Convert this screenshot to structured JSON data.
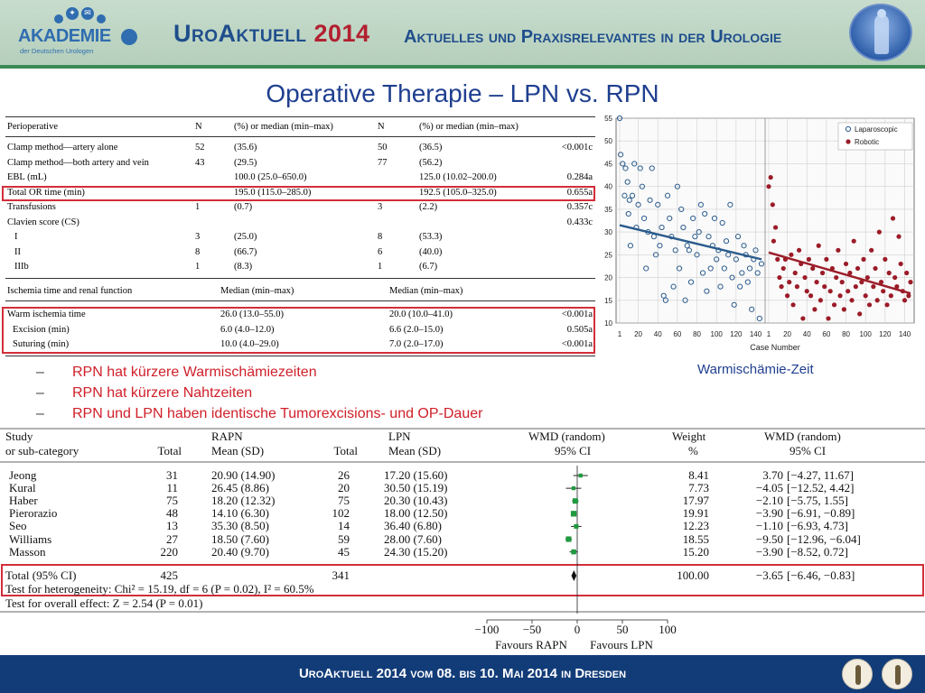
{
  "header": {
    "logo_name": "AKADEMIE",
    "logo_sub": "der Deutschen Urologen",
    "title_main": "UroAktuell",
    "title_year": "2014",
    "subtitle": "Aktuelles und Praxisrelevantes in der Urologie"
  },
  "slide_title": "Operative Therapie – LPN vs. RPN",
  "table1": {
    "headers": [
      "Perioperative",
      "N",
      "(%) or median (min–max)",
      "N",
      "(%) or median (min–max)"
    ],
    "rows": [
      [
        "Clamp method—artery alone",
        "52",
        "(35.6)",
        "50",
        "(36.5)",
        "<0.001c"
      ],
      [
        "Clamp method—both artery and vein",
        "43",
        "(29.5)",
        "77",
        "(56.2)",
        ""
      ],
      [
        "EBL (mL)",
        "",
        "100.0 (25.0–650.0)",
        "",
        "125.0 (10.02–200.0)",
        "0.284a"
      ],
      [
        "Total OR time (min)",
        "",
        "195.0 (115.0–285.0)",
        "",
        "192.5 (105.0–325.0)",
        "0.655a"
      ],
      [
        "Transfusions",
        "1",
        "(0.7)",
        "3",
        "(2.2)",
        "0.357c"
      ],
      [
        "Clavien score (CS)",
        "",
        "",
        "",
        "",
        "0.433c"
      ],
      [
        "I",
        "3",
        "(25.0)",
        "8",
        "(53.3)",
        ""
      ],
      [
        "II",
        "8",
        "(66.7)",
        "6",
        "(40.0)",
        ""
      ],
      [
        "IIIb",
        "1",
        "(8.3)",
        "1",
        "(6.7)",
        ""
      ]
    ],
    "section2_headers": [
      "Ischemia time and renal function",
      "Median (min–max)",
      "Median (min–max)"
    ],
    "rows2": [
      [
        "Warm ischemia time",
        "26.0 (13.0–55.0)",
        "20.0 (10.0–41.0)",
        "<0.001a"
      ],
      [
        "Excision (min)",
        "6.0 (4.0–12.0)",
        "6.6 (2.0–15.0)",
        "0.505a"
      ],
      [
        "Suturing (min)",
        "10.0 (4.0–29.0)",
        "7.0 (2.0–17.0)",
        "<0.001a"
      ]
    ]
  },
  "chart_data": [
    {
      "type": "scatter",
      "xlabel": "Case Number",
      "ylabel": "",
      "ylim": [
        10,
        55
      ],
      "yticks": [
        10,
        15,
        20,
        25,
        30,
        35,
        40,
        45,
        50,
        55
      ],
      "xtick_labels": [
        "1",
        "20",
        "40",
        "60",
        "80",
        "100",
        "120",
        "140",
        "1",
        "20",
        "40",
        "60",
        "80",
        "100",
        "120",
        "140"
      ],
      "grid": true,
      "legend_position": "top-right",
      "series": [
        {
          "name": "Laparoscopic",
          "color": "#2a5b8c",
          "marker": "open-circle",
          "trend": {
            "x": [
              1,
              146
            ],
            "y": [
              31.5,
              24
            ]
          },
          "points": [
            [
              1,
              55
            ],
            [
              2,
              47
            ],
            [
              4,
              45
            ],
            [
              6,
              38
            ],
            [
              7,
              44
            ],
            [
              9,
              41
            ],
            [
              10,
              34
            ],
            [
              11,
              37
            ],
            [
              12,
              27
            ],
            [
              14,
              38
            ],
            [
              16,
              45
            ],
            [
              18,
              31
            ],
            [
              20,
              36
            ],
            [
              22,
              44
            ],
            [
              24,
              40
            ],
            [
              26,
              33
            ],
            [
              28,
              22
            ],
            [
              30,
              30
            ],
            [
              32,
              37
            ],
            [
              34,
              44
            ],
            [
              36,
              29
            ],
            [
              38,
              25
            ],
            [
              40,
              36
            ],
            [
              42,
              27
            ],
            [
              44,
              31
            ],
            [
              46,
              16
            ],
            [
              48,
              15
            ],
            [
              50,
              38
            ],
            [
              52,
              33
            ],
            [
              54,
              29
            ],
            [
              56,
              18
            ],
            [
              58,
              26
            ],
            [
              60,
              40
            ],
            [
              62,
              22
            ],
            [
              64,
              35
            ],
            [
              66,
              31
            ],
            [
              68,
              15
            ],
            [
              70,
              27
            ],
            [
              72,
              26
            ],
            [
              74,
              19
            ],
            [
              76,
              33
            ],
            [
              78,
              29
            ],
            [
              80,
              25
            ],
            [
              82,
              30
            ],
            [
              84,
              36
            ],
            [
              86,
              21
            ],
            [
              88,
              34
            ],
            [
              90,
              17
            ],
            [
              92,
              29
            ],
            [
              94,
              22
            ],
            [
              96,
              27
            ],
            [
              98,
              33
            ],
            [
              100,
              24
            ],
            [
              102,
              26
            ],
            [
              104,
              18
            ],
            [
              106,
              32
            ],
            [
              108,
              22
            ],
            [
              110,
              28
            ],
            [
              112,
              25
            ],
            [
              114,
              36
            ],
            [
              116,
              20
            ],
            [
              118,
              14
            ],
            [
              120,
              24
            ],
            [
              122,
              29
            ],
            [
              124,
              18
            ],
            [
              126,
              21
            ],
            [
              128,
              27
            ],
            [
              130,
              25
            ],
            [
              132,
              19
            ],
            [
              134,
              22
            ],
            [
              136,
              13
            ],
            [
              138,
              24
            ],
            [
              140,
              26
            ],
            [
              142,
              21
            ],
            [
              144,
              11
            ],
            [
              146,
              23
            ]
          ]
        },
        {
          "name": "Robotic",
          "color": "#9b1c28",
          "marker": "filled-circle",
          "trend": {
            "x": [
              1,
              146
            ],
            "y": [
              25.5,
              16.5
            ]
          },
          "points": [
            [
              1,
              40
            ],
            [
              3,
              42
            ],
            [
              5,
              36
            ],
            [
              6,
              28
            ],
            [
              8,
              31
            ],
            [
              10,
              24
            ],
            [
              12,
              20
            ],
            [
              14,
              18
            ],
            [
              16,
              22
            ],
            [
              18,
              24
            ],
            [
              20,
              16
            ],
            [
              22,
              19
            ],
            [
              24,
              25
            ],
            [
              26,
              14
            ],
            [
              28,
              21
            ],
            [
              30,
              18
            ],
            [
              32,
              26
            ],
            [
              34,
              23
            ],
            [
              36,
              11
            ],
            [
              38,
              20
            ],
            [
              40,
              17
            ],
            [
              42,
              24
            ],
            [
              44,
              16
            ],
            [
              46,
              22
            ],
            [
              48,
              13
            ],
            [
              50,
              19
            ],
            [
              52,
              27
            ],
            [
              54,
              15
            ],
            [
              56,
              21
            ],
            [
              58,
              18
            ],
            [
              60,
              24
            ],
            [
              62,
              11
            ],
            [
              64,
              17
            ],
            [
              66,
              22
            ],
            [
              68,
              14
            ],
            [
              70,
              20
            ],
            [
              72,
              26
            ],
            [
              74,
              16
            ],
            [
              76,
              19
            ],
            [
              78,
              13
            ],
            [
              80,
              23
            ],
            [
              82,
              17
            ],
            [
              84,
              21
            ],
            [
              86,
              15
            ],
            [
              88,
              28
            ],
            [
              90,
              18
            ],
            [
              92,
              22
            ],
            [
              94,
              12
            ],
            [
              96,
              19
            ],
            [
              98,
              24
            ],
            [
              100,
              16
            ],
            [
              102,
              20
            ],
            [
              104,
              14
            ],
            [
              106,
              26
            ],
            [
              108,
              18
            ],
            [
              110,
              22
            ],
            [
              112,
              15
            ],
            [
              114,
              30
            ],
            [
              116,
              19
            ],
            [
              118,
              17
            ],
            [
              120,
              24
            ],
            [
              122,
              14
            ],
            [
              124,
              21
            ],
            [
              126,
              16
            ],
            [
              128,
              33
            ],
            [
              130,
              20
            ],
            [
              132,
              18
            ],
            [
              134,
              29
            ],
            [
              136,
              23
            ],
            [
              138,
              17
            ],
            [
              140,
              15
            ],
            [
              142,
              21
            ],
            [
              144,
              16
            ],
            [
              146,
              19
            ]
          ]
        }
      ]
    },
    {
      "type": "forest",
      "xlabel_left": "Favours RAPN",
      "xlabel_right": "Favours LPN",
      "xlim": [
        -100,
        100
      ],
      "xtick_labels": [
        "−100",
        "−50",
        "0",
        "50",
        "100"
      ],
      "series": [
        {
          "name": "WMD (random)",
          "studies": [
            {
              "study": "Jeong",
              "wmd": 3.7,
              "lo": -4.27,
              "hi": 11.67,
              "weight": 8.41
            },
            {
              "study": "Kural",
              "wmd": -4.05,
              "lo": -12.52,
              "hi": 4.42,
              "weight": 7.73
            },
            {
              "study": "Haber",
              "wmd": -2.1,
              "lo": -5.75,
              "hi": 1.55,
              "weight": 17.97
            },
            {
              "study": "Pierorazio",
              "wmd": -3.9,
              "lo": -6.91,
              "hi": -0.89,
              "weight": 19.91
            },
            {
              "study": "Seo",
              "wmd": -1.1,
              "lo": -6.93,
              "hi": 4.73,
              "weight": 12.23
            },
            {
              "study": "Williams",
              "wmd": -9.5,
              "lo": -12.96,
              "hi": -6.04,
              "weight": 18.55
            },
            {
              "study": "Masson",
              "wmd": -3.9,
              "lo": -8.52,
              "hi": 0.72,
              "weight": 15.2
            }
          ],
          "total": {
            "wmd": -3.65,
            "lo": -6.46,
            "hi": -0.83
          }
        }
      ]
    }
  ],
  "caption_warm": "Warmischämie-Zeit",
  "bullets": [
    "RPN hat kürzere Warmischämiezeiten",
    "RPN hat kürzere Nahtzeiten",
    "RPN und LPN haben identische Tumorexcisions- und OP-Dauer"
  ],
  "forest": {
    "headers": {
      "study1": "Study",
      "study2": "or sub-category",
      "rapn": "RAPN",
      "total1": "Total",
      "mean1": "Mean (SD)",
      "lpn": "LPN",
      "total2": "Total",
      "mean2": "Mean (SD)",
      "wmd1": "WMD (random)",
      "wmd2": "95% CI",
      "weight1": "Weight",
      "weight2": "%",
      "wmdr1": "WMD (random)",
      "wmdr2": "95% CI"
    },
    "rows": [
      {
        "study": "Jeong",
        "n1": "31",
        "m1": "20.90 (14.90)",
        "n2": "26",
        "m2": "17.20 (15.60)",
        "weight": "8.41",
        "wmd": "3.70",
        "ci": "[−4.27, 11.67]"
      },
      {
        "study": "Kural",
        "n1": "11",
        "m1": "26.45 (8.86)",
        "n2": "20",
        "m2": "30.50 (15.19)",
        "weight": "7.73",
        "wmd": "−4.05",
        "ci": "[−12.52, 4.42]"
      },
      {
        "study": "Haber",
        "n1": "75",
        "m1": "18.20 (12.32)",
        "n2": "75",
        "m2": "20.30 (10.43)",
        "weight": "17.97",
        "wmd": "−2.10",
        "ci": "[−5.75, 1.55]"
      },
      {
        "study": "Pierorazio",
        "n1": "48",
        "m1": "14.10 (6.30)",
        "n2": "102",
        "m2": "18.00 (12.50)",
        "weight": "19.91",
        "wmd": "−3.90",
        "ci": "[−6.91, −0.89]"
      },
      {
        "study": "Seo",
        "n1": "13",
        "m1": "35.30 (8.50)",
        "n2": "14",
        "m2": "36.40 (6.80)",
        "weight": "12.23",
        "wmd": "−1.10",
        "ci": "[−6.93, 4.73]"
      },
      {
        "study": "Williams",
        "n1": "27",
        "m1": "18.50 (7.60)",
        "n2": "59",
        "m2": "28.00 (7.60)",
        "weight": "18.55",
        "wmd": "−9.50",
        "ci": "[−12.96, −6.04]"
      },
      {
        "study": "Masson",
        "n1": "220",
        "m1": "20.40 (9.70)",
        "n2": "45",
        "m2": "24.30 (15.20)",
        "weight": "15.20",
        "wmd": "−3.90",
        "ci": "[−8.52, 0.72]"
      }
    ],
    "total_row": {
      "label": "Total (95% CI)",
      "n1": "425",
      "n2": "341",
      "weight": "100.00",
      "wmd": "−3.65",
      "ci": "[−6.46, −0.83]"
    },
    "heterogeneity": "Test for heterogeneity: Chi² = 15.19, df = 6 (P = 0.02), I² = 60.5%",
    "overall": "Test for overall effect: Z = 2.54 (P = 0.01)"
  },
  "footer": {
    "text": "UroAktuell 2014  vom 08. bis 10. Mai 2014  in Dresden"
  }
}
